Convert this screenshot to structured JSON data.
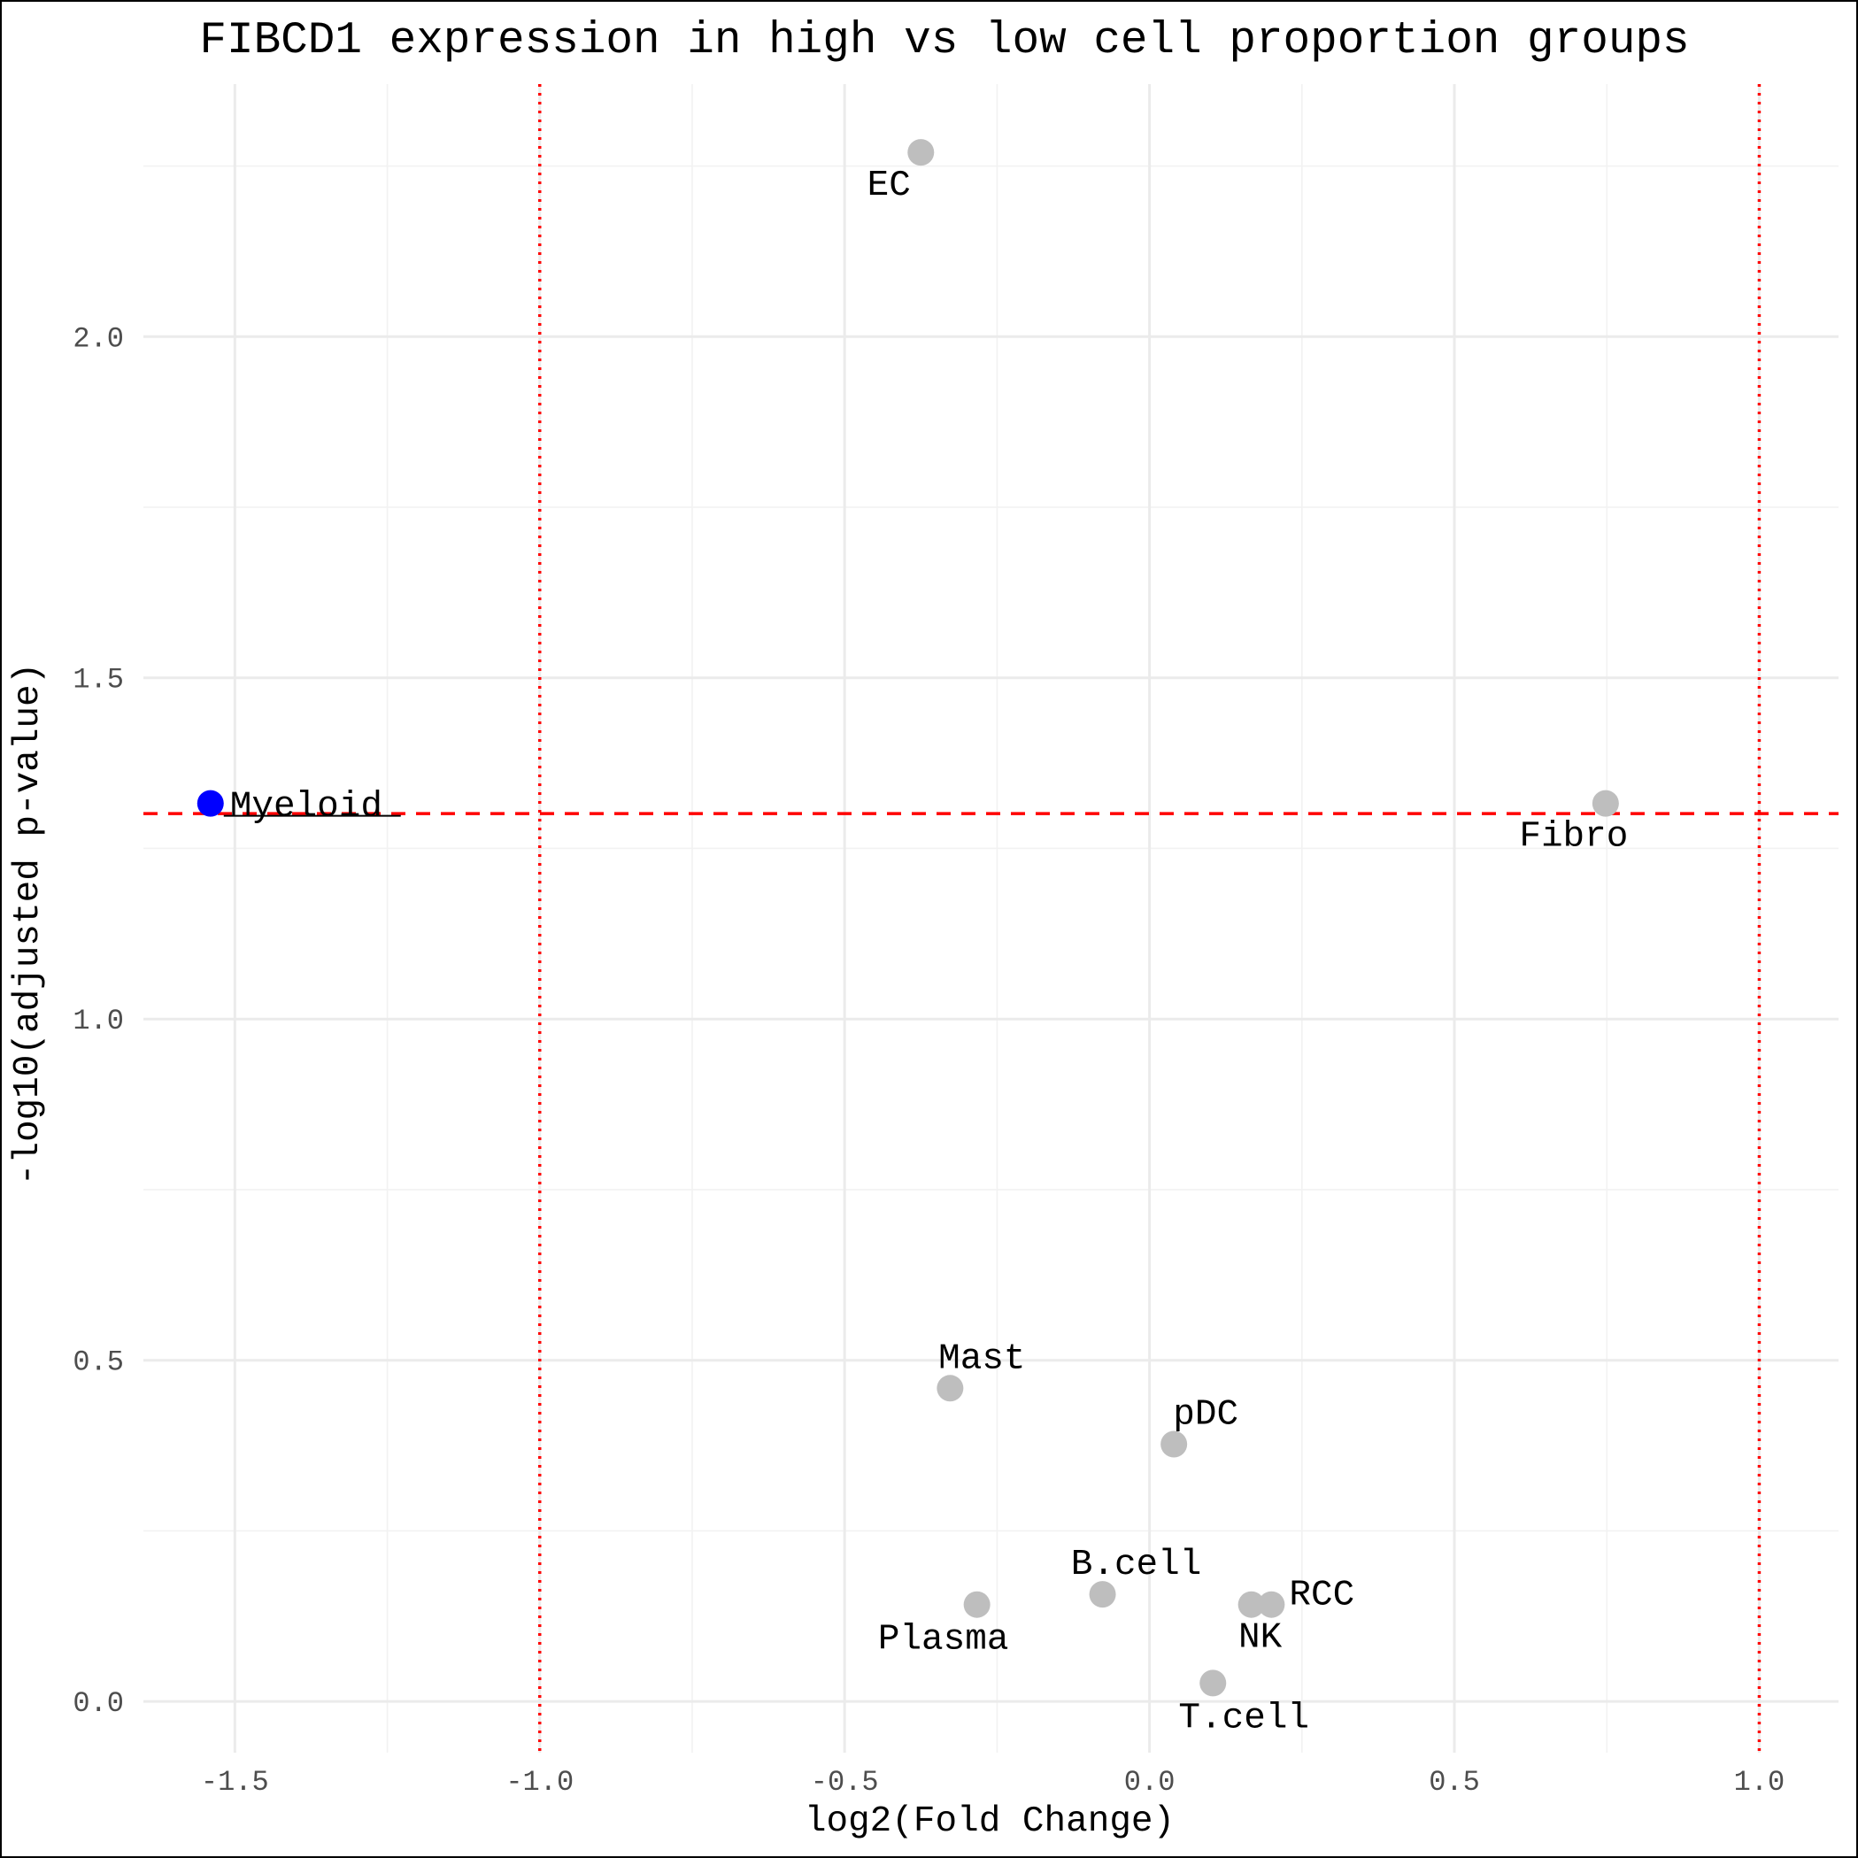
{
  "chart_data": {
    "type": "scatter",
    "title": "FIBCD1 expression in high vs low cell proportion groups",
    "xlabel": "log2(Fold Change)",
    "ylabel": "-log10(adjusted p-value)",
    "xlim": [
      -1.65,
      1.13
    ],
    "ylim": [
      -0.075,
      2.37
    ],
    "xticks": [
      -1.5,
      -1.0,
      -0.5,
      0.0,
      0.5,
      1.0
    ],
    "xtick_labels": [
      "-1.5",
      "-1.0",
      "-0.5",
      "0.0",
      "0.5",
      "1.0"
    ],
    "yticks": [
      0.0,
      0.5,
      1.0,
      1.5,
      2.0
    ],
    "ytick_labels": [
      "0.0",
      "0.5",
      "1.0",
      "1.5",
      "2.0"
    ],
    "grid": true,
    "threshold_lines": {
      "vertical_x": [
        -1.0,
        1.0
      ],
      "horizontal_y": 1.301,
      "color": "#ff0000"
    },
    "point_colors": {
      "significant": "#0000ff",
      "not_significant": "#bebebe"
    },
    "points": [
      {
        "label": "EC",
        "x": -0.375,
        "y": 2.27,
        "significant": false
      },
      {
        "label": "Myeloid",
        "x": -1.54,
        "y": 1.316,
        "significant": true
      },
      {
        "label": "Fibro",
        "x": 0.748,
        "y": 1.316,
        "significant": false
      },
      {
        "label": "Mast",
        "x": -0.327,
        "y": 0.459,
        "significant": false
      },
      {
        "label": "pDC",
        "x": 0.04,
        "y": 0.377,
        "significant": false
      },
      {
        "label": "B.cell",
        "x": -0.077,
        "y": 0.157,
        "significant": false
      },
      {
        "label": "Plasma",
        "x": -0.283,
        "y": 0.142,
        "significant": false
      },
      {
        "label": "NK",
        "x": 0.167,
        "y": 0.142,
        "significant": false
      },
      {
        "label": "RCC",
        "x": 0.2,
        "y": 0.142,
        "significant": false
      },
      {
        "label": "T.cell",
        "x": 0.104,
        "y": 0.027,
        "significant": false
      }
    ]
  }
}
